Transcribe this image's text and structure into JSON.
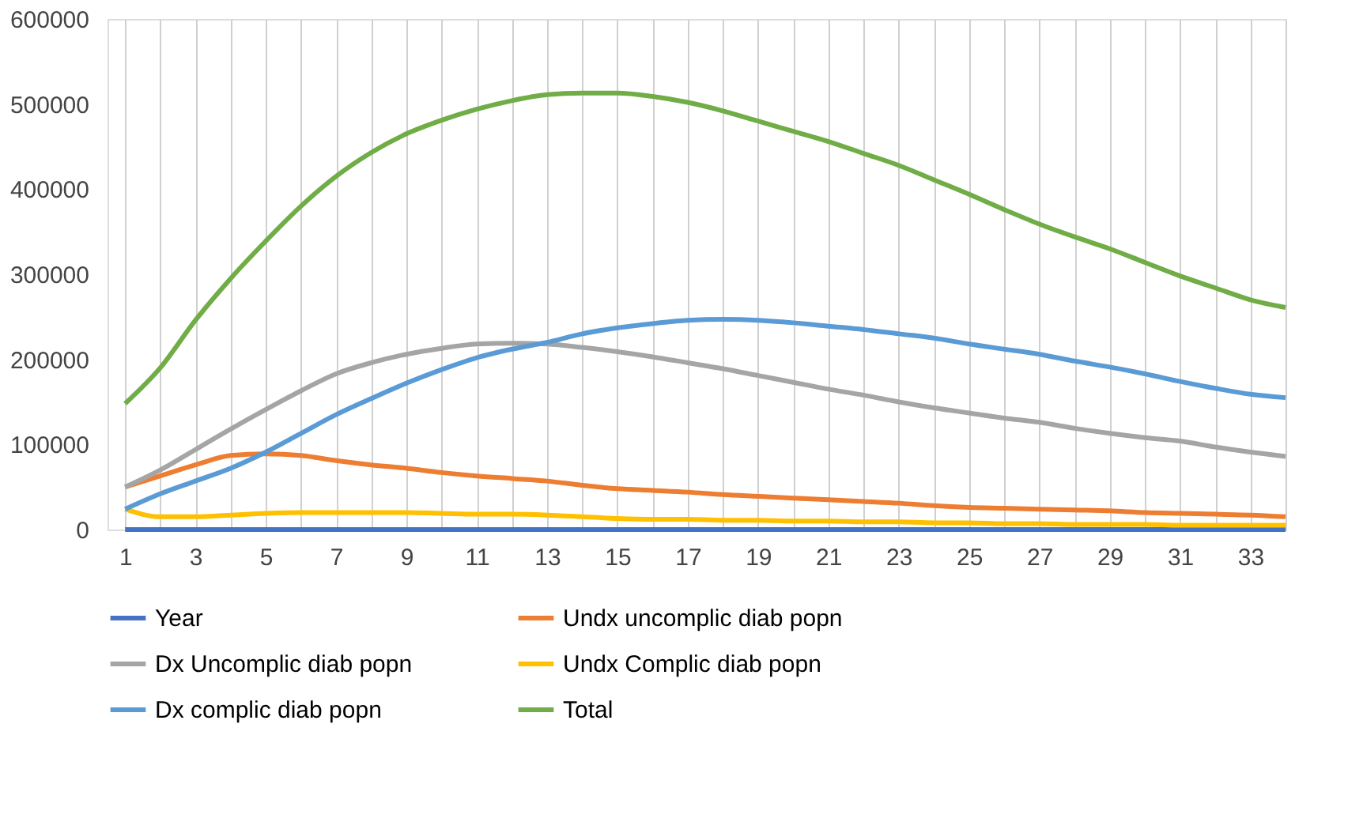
{
  "chart_data": {
    "type": "line",
    "x": [
      1,
      2,
      3,
      4,
      5,
      6,
      7,
      8,
      9,
      10,
      11,
      12,
      13,
      14,
      15,
      16,
      17,
      18,
      19,
      20,
      21,
      22,
      23,
      24,
      25,
      26,
      27,
      28,
      29,
      30,
      31,
      32,
      33,
      34
    ],
    "xlim": [
      0.5,
      34
    ],
    "xticks": [
      1,
      {
        "value": 2,
        "label": null
      },
      3,
      {
        "value": 4,
        "label": null
      },
      5,
      {
        "value": 6,
        "label": null
      },
      7,
      {
        "value": 8,
        "label": null
      },
      9,
      {
        "value": 10,
        "label": null
      },
      11,
      {
        "value": 12,
        "label": null
      },
      13,
      {
        "value": 14,
        "label": null
      },
      15,
      {
        "value": 16,
        "label": null
      },
      17,
      {
        "value": 18,
        "label": null
      },
      19,
      {
        "value": 20,
        "label": null
      },
      21,
      {
        "value": 22,
        "label": null
      },
      23,
      {
        "value": 24,
        "label": null
      },
      25,
      {
        "value": 26,
        "label": null
      },
      27,
      {
        "value": 28,
        "label": null
      },
      29,
      {
        "value": 30,
        "label": null
      },
      31,
      {
        "value": 32,
        "label": null
      },
      33,
      {
        "value": 34,
        "label": null
      }
    ],
    "ylim": [
      0,
      600000
    ],
    "yticks": [
      0,
      100000,
      200000,
      300000,
      400000,
      500000,
      600000
    ],
    "grid": "x",
    "legend": "bottom",
    "marker": "none",
    "line_style": "solid",
    "series": [
      {
        "name": "Year",
        "color": "#4472c4",
        "values": [
          0,
          0,
          0,
          0,
          0,
          0,
          0,
          0,
          0,
          0,
          0,
          0,
          0,
          0,
          0,
          0,
          0,
          0,
          0,
          0,
          0,
          0,
          0,
          0,
          0,
          0,
          0,
          0,
          0,
          0,
          0,
          0,
          0,
          0
        ]
      },
      {
        "name": "Undx uncomplic diab popn",
        "color": "#ed7d31",
        "values": [
          50000,
          63000,
          76000,
          87000,
          89000,
          87000,
          81000,
          76000,
          72000,
          67000,
          63000,
          60000,
          57000,
          52000,
          48000,
          46000,
          44000,
          41000,
          39000,
          37000,
          35000,
          33000,
          31000,
          28000,
          26000,
          25000,
          24000,
          23000,
          22000,
          20000,
          19000,
          18000,
          17000,
          15000
        ]
      },
      {
        "name": "Dx Uncomplic diab popn",
        "color": "#a5a5a5",
        "values": [
          50000,
          70000,
          94000,
          118000,
          141000,
          163000,
          183000,
          196000,
          206000,
          213000,
          218000,
          219000,
          218000,
          214000,
          209000,
          203000,
          196000,
          189000,
          181000,
          173000,
          165000,
          158000,
          150000,
          143000,
          137000,
          131000,
          126000,
          119000,
          113000,
          108000,
          104000,
          97000,
          91000,
          86000
        ]
      },
      {
        "name": "Undx Complic diab popn",
        "color": "#ffc000",
        "values": [
          24000,
          15000,
          15000,
          17000,
          19000,
          20000,
          20000,
          20000,
          20000,
          19000,
          18000,
          18000,
          17000,
          15000,
          13000,
          12000,
          12000,
          11000,
          11000,
          10000,
          10000,
          9000,
          9000,
          8000,
          8000,
          7000,
          7000,
          6000,
          6000,
          6000,
          5000,
          5000,
          5000,
          5000
        ]
      },
      {
        "name": "Dx complic diab popn",
        "color": "#5b9bd5",
        "values": [
          24000,
          42000,
          57000,
          72000,
          91000,
          113000,
          135000,
          154000,
          172000,
          188000,
          202000,
          212000,
          220000,
          230000,
          237000,
          242000,
          246000,
          247000,
          246000,
          243000,
          239000,
          235000,
          230000,
          225000,
          218000,
          212000,
          206000,
          198000,
          191000,
          183000,
          174000,
          166000,
          159000,
          155000
        ]
      },
      {
        "name": "Total",
        "color": "#70ad47",
        "values": [
          148000,
          190000,
          246000,
          295000,
          339000,
          380000,
          415000,
          443000,
          465000,
          481000,
          494000,
          504000,
          511000,
          513000,
          513000,
          509000,
          502000,
          492000,
          480000,
          468000,
          456000,
          442000,
          428000,
          411000,
          394000,
          376000,
          359000,
          344000,
          330000,
          314000,
          298000,
          284000,
          270000,
          261000
        ]
      }
    ]
  }
}
